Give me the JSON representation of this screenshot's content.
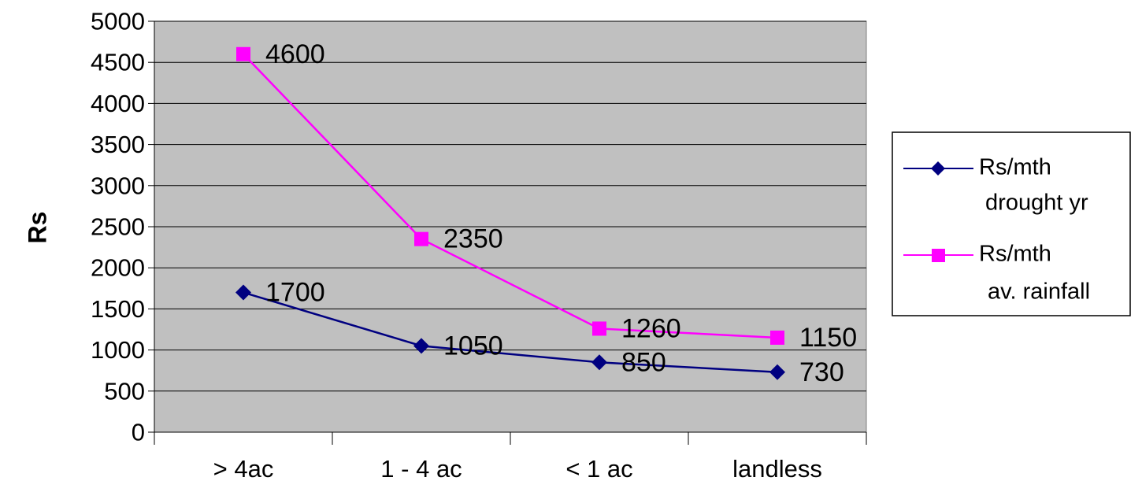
{
  "chart_data": {
    "type": "line",
    "title": "",
    "xlabel": "",
    "ylabel": "Rs",
    "categories": [
      "> 4ac",
      "1 - 4 ac",
      "< 1 ac",
      "landless"
    ],
    "ylim": [
      0,
      5000
    ],
    "yticks": [
      0,
      500,
      1000,
      1500,
      2000,
      2500,
      3000,
      3500,
      4000,
      4500,
      5000
    ],
    "grid": true,
    "legend_position": "right",
    "series": [
      {
        "legend_line1": "Rs/mth",
        "legend_line2": " drought yr",
        "values": [
          1700,
          1050,
          850,
          730
        ],
        "labels": [
          "1700",
          "1050",
          "850",
          "730"
        ],
        "color": "#000080",
        "marker": "diamond"
      },
      {
        "legend_line1": "Rs/mth",
        "legend_line2": "av. rainfall",
        "values": [
          4600,
          2350,
          1260,
          1150
        ],
        "labels": [
          "4600",
          "2350",
          "1260",
          "1150"
        ],
        "color": "#FF00FF",
        "marker": "square"
      }
    ],
    "plot_background": "#C0C0C0",
    "grid_color": "#000000"
  }
}
